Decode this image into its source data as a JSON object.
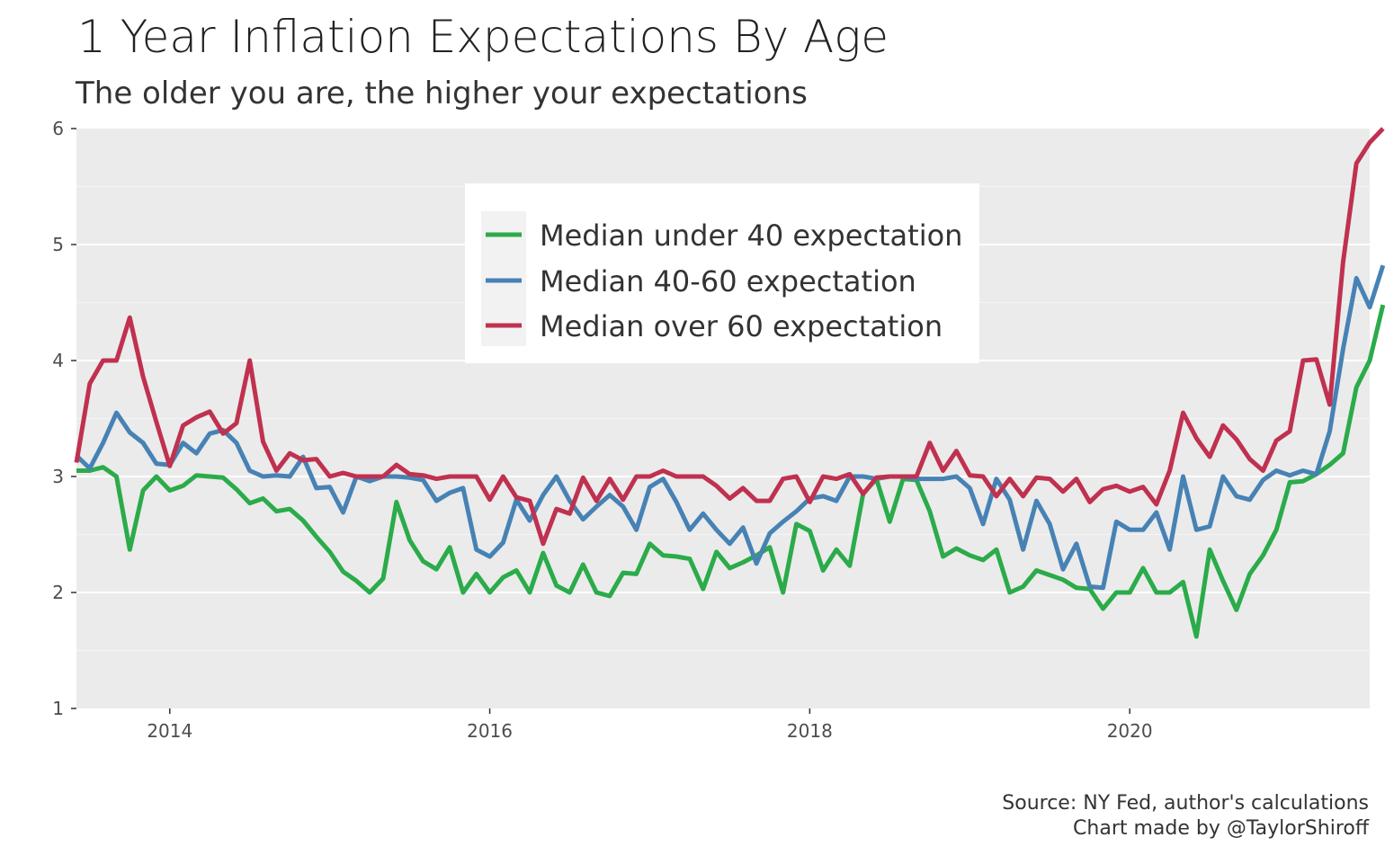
{
  "chart_data": {
    "type": "line",
    "title": "1 Year Inflation Expectations By Age",
    "subtitle": "The older you are, the higher your expectations",
    "xlabel": "",
    "ylabel": "",
    "x_start": "2013-06",
    "x_frequency": "monthly",
    "xlim": [
      "2013-06",
      "2021-07"
    ],
    "x_ticks": [
      "2014",
      "2016",
      "2018",
      "2020"
    ],
    "ylim": [
      1,
      6
    ],
    "y_ticks": [
      "1",
      "2",
      "3",
      "4",
      "5",
      "6"
    ],
    "grid": true,
    "legend_position": "top-center",
    "series": [
      {
        "name": "Median under 40 expectation",
        "color": "#2bab4a",
        "values": [
          3.05,
          3.05,
          3.08,
          3.0,
          2.37,
          2.88,
          3.0,
          2.88,
          2.92,
          3.01,
          3.0,
          2.99,
          2.89,
          2.77,
          2.81,
          2.7,
          2.72,
          2.62,
          2.48,
          2.35,
          2.18,
          2.1,
          2.0,
          2.12,
          2.78,
          2.45,
          2.27,
          2.2,
          2.39,
          2.0,
          2.16,
          2.0,
          2.13,
          2.19,
          2.0,
          2.34,
          2.06,
          2.0,
          2.24,
          2.0,
          1.97,
          2.17,
          2.16,
          2.42,
          2.32,
          2.31,
          2.29,
          2.03,
          2.35,
          2.21,
          2.26,
          2.32,
          2.39,
          2.0,
          2.59,
          2.53,
          2.19,
          2.37,
          2.23,
          2.85,
          2.98,
          2.61,
          2.98,
          2.97,
          2.7,
          2.31,
          2.38,
          2.32,
          2.28,
          2.37,
          2.0,
          2.05,
          2.19,
          2.15,
          2.11,
          2.04,
          2.03,
          1.86,
          2.0,
          2.0,
          2.21,
          2.0,
          2.0,
          2.09,
          1.62,
          2.37,
          2.1,
          1.85,
          2.16,
          2.32,
          2.54,
          2.95,
          2.96,
          3.02,
          3.1,
          3.2,
          3.77,
          4.0,
          4.48
        ]
      },
      {
        "name": "Median 40-60 expectation",
        "color": "#4782b4",
        "values": [
          3.18,
          3.07,
          3.29,
          3.55,
          3.38,
          3.29,
          3.11,
          3.1,
          3.29,
          3.2,
          3.37,
          3.4,
          3.29,
          3.05,
          3.0,
          3.01,
          3.0,
          3.17,
          2.9,
          2.91,
          2.69,
          3.0,
          2.96,
          3.0,
          3.0,
          2.99,
          2.97,
          2.79,
          2.86,
          2.9,
          2.37,
          2.31,
          2.43,
          2.8,
          2.62,
          2.84,
          3.0,
          2.79,
          2.63,
          2.74,
          2.84,
          2.74,
          2.54,
          2.91,
          2.98,
          2.78,
          2.54,
          2.68,
          2.54,
          2.42,
          2.56,
          2.25,
          2.51,
          2.61,
          2.7,
          2.81,
          2.83,
          2.79,
          3.0,
          3.0,
          2.98,
          3.0,
          3.0,
          2.98,
          2.98,
          2.98,
          3.0,
          2.9,
          2.59,
          2.98,
          2.8,
          2.37,
          2.79,
          2.59,
          2.2,
          2.42,
          2.05,
          2.04,
          2.61,
          2.54,
          2.54,
          2.69,
          2.37,
          3.0,
          2.54,
          2.57,
          3.0,
          2.83,
          2.8,
          2.97,
          3.05,
          3.01,
          3.05,
          3.02,
          3.39,
          4.1,
          4.71,
          4.46,
          4.82
        ]
      },
      {
        "name": "Median over 60 expectation",
        "color": "#c0314f",
        "values": [
          3.12,
          3.8,
          4.0,
          4.0,
          4.37,
          3.86,
          3.47,
          3.09,
          3.44,
          3.51,
          3.56,
          3.37,
          3.46,
          4.0,
          3.3,
          3.05,
          3.2,
          3.14,
          3.15,
          3.0,
          3.03,
          3.0,
          3.0,
          3.0,
          3.1,
          3.02,
          3.01,
          2.98,
          3.0,
          3.0,
          3.0,
          2.8,
          3.0,
          2.82,
          2.79,
          2.42,
          2.72,
          2.68,
          2.99,
          2.79,
          2.98,
          2.8,
          3.0,
          3.0,
          3.05,
          3.0,
          3.0,
          3.0,
          2.92,
          2.81,
          2.9,
          2.79,
          2.79,
          2.98,
          3.0,
          2.78,
          3.0,
          2.98,
          3.02,
          2.85,
          2.99,
          3.0,
          3.0,
          3.0,
          3.29,
          3.05,
          3.22,
          3.01,
          3.0,
          2.83,
          2.98,
          2.83,
          2.99,
          2.98,
          2.87,
          2.98,
          2.78,
          2.89,
          2.92,
          2.87,
          2.91,
          2.76,
          3.05,
          3.55,
          3.33,
          3.17,
          3.44,
          3.32,
          3.15,
          3.05,
          3.31,
          3.39,
          4.0,
          4.01,
          3.62,
          4.85,
          5.7,
          5.88,
          6.0
        ]
      }
    ],
    "caption": [
      "Source: NY Fed, author's calculations",
      "Chart made by @TaylorShiroff"
    ]
  }
}
